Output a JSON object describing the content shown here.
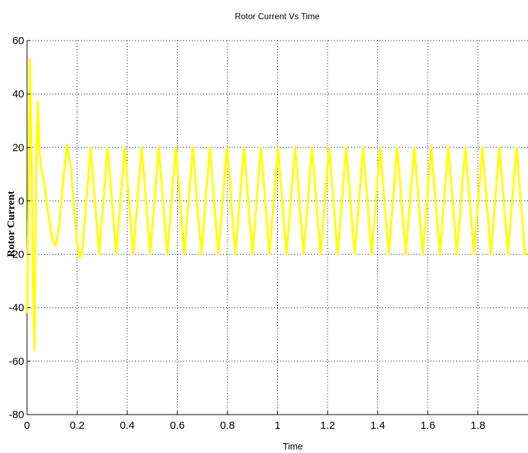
{
  "chart_data": {
    "type": "line",
    "title": "Rotor Current Vs Time",
    "xlabel": "Time",
    "ylabel": "Rotor Current",
    "xlim": [
      0,
      2
    ],
    "ylim": [
      -80,
      60
    ],
    "xticks": [
      0,
      0.2,
      0.4,
      0.6,
      0.8,
      1,
      1.2,
      1.4,
      1.6,
      1.8
    ],
    "xtick_labels": [
      "0",
      "0.2",
      "0.4",
      "0.6",
      "0.8",
      "1",
      "1.2",
      "1.4",
      "1.6",
      "1.8"
    ],
    "yticks": [
      60,
      40,
      20,
      0,
      -20,
      -40,
      -60,
      -80
    ],
    "ytick_labels": [
      "60",
      "40",
      "20",
      "0",
      "-20",
      "-40",
      "-60",
      "-80"
    ],
    "grid": true,
    "grid_style": "dotted",
    "line_color": "#ffff00",
    "series": [
      {
        "x": [
          0,
          0.005,
          0.012,
          0.018,
          0.024,
          0.03,
          0.036,
          0.043,
          0.05,
          0.058,
          0.066,
          0.075,
          0.085,
          0.1,
          0.115,
          0.13,
          0.145,
          0.16,
          0.175,
          0.19,
          0.205,
          0.212,
          0.22,
          0.237,
          0.254,
          0.271,
          0.288,
          0.305,
          0.322,
          0.339,
          0.356,
          0.373,
          0.39,
          0.407,
          0.424,
          0.441,
          0.458,
          0.475,
          0.492,
          0.509,
          0.526,
          0.543,
          0.56,
          0.577,
          0.594,
          0.611,
          0.628,
          0.645,
          0.662,
          0.679,
          0.696,
          0.713,
          0.73,
          0.747,
          0.764,
          0.781,
          0.798,
          0.815,
          0.832,
          0.849,
          0.866,
          0.883,
          0.9,
          0.917,
          0.934,
          0.951,
          0.968,
          0.985,
          1.002,
          1.019,
          1.036,
          1.053,
          1.07,
          1.087,
          1.104,
          1.121,
          1.138,
          1.155,
          1.172,
          1.189,
          1.206,
          1.223,
          1.24,
          1.257,
          1.274,
          1.291,
          1.308,
          1.325,
          1.342,
          1.359,
          1.376,
          1.393,
          1.41,
          1.427,
          1.444,
          1.461,
          1.478,
          1.495,
          1.512,
          1.529,
          1.546,
          1.563,
          1.58,
          1.597,
          1.614,
          1.631,
          1.648,
          1.665,
          1.682,
          1.699,
          1.716,
          1.733,
          1.75,
          1.767,
          1.784,
          1.801,
          1.818,
          1.835,
          1.852,
          1.869,
          1.886,
          1.903,
          1.92,
          1.937,
          1.954,
          1.971,
          1.988,
          1.998
        ],
        "y": [
          -42,
          -5,
          53,
          20,
          -30,
          -56,
          10,
          37,
          18,
          12,
          8,
          2,
          -5,
          -14,
          -17,
          -8,
          8,
          21,
          12,
          -5,
          -20,
          -21,
          -19,
          0,
          20,
          0,
          -20,
          0,
          20,
          0,
          -20,
          0,
          20,
          0,
          -20,
          0,
          20,
          0,
          -20,
          0,
          20,
          0,
          -20,
          0,
          20,
          0,
          -20,
          0,
          20,
          0,
          -20,
          0,
          20,
          0,
          -20,
          0,
          20,
          0,
          -20,
          0,
          20,
          0,
          -20,
          0,
          20,
          0,
          -20,
          0,
          20,
          0,
          -20,
          0,
          20,
          0,
          -20,
          0,
          20,
          0,
          -20,
          0,
          20,
          0,
          -20,
          0,
          20,
          0,
          -20,
          0,
          20,
          0,
          -20,
          0,
          20,
          0,
          -20,
          0,
          20,
          0,
          -20,
          0,
          20,
          0,
          -20,
          0,
          20,
          0,
          -20,
          0,
          20,
          0,
          -20,
          0,
          20,
          0,
          -20,
          0,
          20,
          0,
          -20,
          0,
          20,
          0,
          -20,
          0,
          20,
          0,
          -20,
          -20
        ]
      }
    ]
  }
}
